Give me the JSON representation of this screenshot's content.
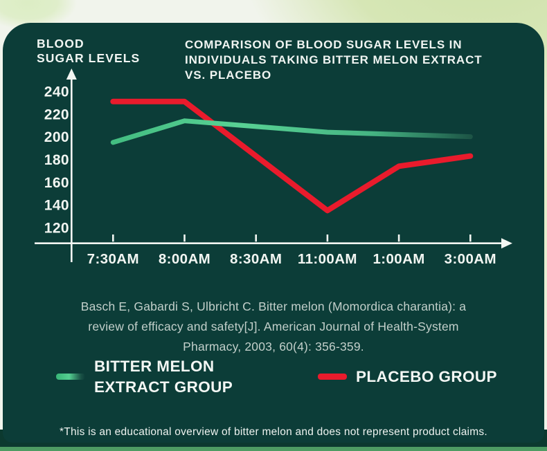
{
  "titles": {
    "left": "BLOOD\nSUGAR LEVELS",
    "right": "COMPARISON OF BLOOD SUGAR LEVELS IN\nINDIVIDUALS TAKING BITTER MELON EXTRACT\nVS. PLACEBO"
  },
  "chart_data": {
    "type": "line",
    "title": "COMPARISON OF BLOOD SUGAR LEVELS IN INDIVIDUALS TAKING BITTER MELON EXTRACT VS. PLACEBO",
    "ylabel": "BLOOD SUGAR LEVELS",
    "categories": [
      "7:30AM",
      "8:00AM",
      "8:30AM",
      "11:00AM",
      "1:00AM",
      "3:00AM"
    ],
    "y_ticks": [
      240,
      220,
      200,
      180,
      160,
      140,
      120
    ],
    "ylim": [
      120,
      248
    ],
    "grid": false,
    "legend_position": "bottom",
    "series": [
      {
        "name": "BITTER MELON EXTRACT GROUP",
        "color": "#52cc8e",
        "color_end": "#1d5546",
        "gradient": true,
        "stroke_width": 7,
        "values": [
          195,
          214,
          209,
          204,
          202,
          200
        ]
      },
      {
        "name": "PLACEBO GROUP",
        "color": "#e91b2c",
        "gradient": false,
        "stroke_width": 8,
        "values": [
          231,
          231,
          183,
          135,
          174,
          183
        ]
      }
    ]
  },
  "citation": "Basch E, Gabardi S, Ulbricht C. Bitter melon (Momordica charantia): a\nreview of efficacy and safety[J]. American Journal of Health-System\nPharmacy, 2003, 60(4): 356-359.",
  "legend": {
    "items": [
      {
        "label": "BITTER MELON\nEXTRACT GROUP",
        "color": "#52cc8e"
      },
      {
        "label": "PLACEBO GROUP",
        "color": "#e91b2c"
      }
    ]
  },
  "footnote": "*This is an educational overview of bitter melon and does not represent product claims.",
  "colors": {
    "card_background": "#0c3d38",
    "page_background": "#f1f4ec",
    "background_blob_green": "#d6e6b5",
    "axis_and_text": "#f2f6f2",
    "citation_text": "#c2cfca",
    "bitter_melon_line": "#52cc8e",
    "placebo_line": "#e91b2c",
    "bottom_band": "#0c392f",
    "bottom_accent_bar": "#4e9c63"
  }
}
